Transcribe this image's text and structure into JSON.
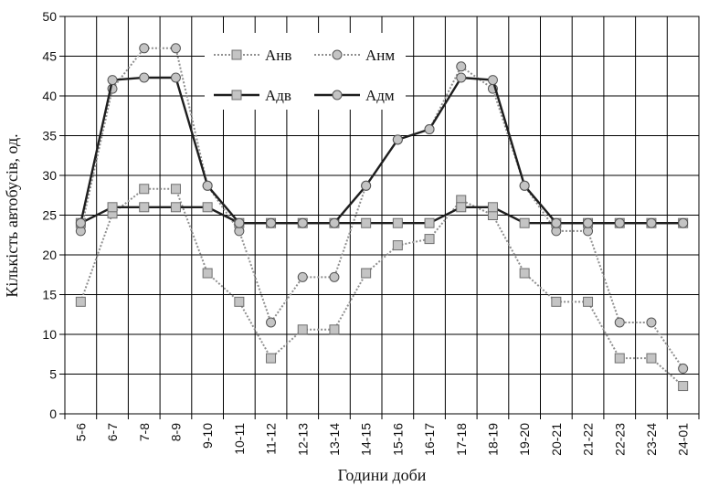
{
  "chart_data": {
    "type": "line",
    "title": "",
    "xlabel": "Години доби",
    "ylabel": "Кількість автобусів, од.",
    "ylim": [
      0,
      50
    ],
    "yticks": [
      0,
      5,
      10,
      15,
      20,
      25,
      30,
      35,
      40,
      45,
      50
    ],
    "grid": true,
    "legend": "top-center",
    "categories": [
      "5-6",
      "6-7",
      "7-8",
      "8-9",
      "9-10",
      "10-11",
      "11-12",
      "12-13",
      "13-14",
      "14-15",
      "15-16",
      "16-17",
      "17-18",
      "18-19",
      "19-20",
      "20-21",
      "21-22",
      "22-23",
      "23-24",
      "24-01"
    ],
    "series": [
      {
        "name": "Анв",
        "marker": "square",
        "style": "dotted",
        "values": [
          14.1,
          25.2,
          28.3,
          28.3,
          17.7,
          14.1,
          7.0,
          10.6,
          10.6,
          17.7,
          21.2,
          22.0,
          26.9,
          25.0,
          17.7,
          14.1,
          14.1,
          7.0,
          7.0,
          3.5
        ]
      },
      {
        "name": "Анм",
        "marker": "circle",
        "style": "dotted",
        "values": [
          23.0,
          40.9,
          46.0,
          46.0,
          28.7,
          23.0,
          11.5,
          17.2,
          17.2,
          28.7,
          34.5,
          35.8,
          43.7,
          40.9,
          28.7,
          23.0,
          23.0,
          11.5,
          11.5,
          5.7
        ]
      },
      {
        "name": "Адв",
        "marker": "square",
        "style": "solid",
        "values": [
          24.0,
          26.0,
          26.0,
          26.0,
          26.0,
          24.0,
          24.0,
          24.0,
          24.0,
          24.0,
          24.0,
          24.0,
          26.0,
          26.0,
          24.0,
          24.0,
          24.0,
          24.0,
          24.0,
          24.0
        ]
      },
      {
        "name": "Адм",
        "marker": "circle",
        "style": "solid",
        "values": [
          24.0,
          42.0,
          42.3,
          42.3,
          28.7,
          24.0,
          24.0,
          24.0,
          24.0,
          28.7,
          34.5,
          35.8,
          42.3,
          42.0,
          28.7,
          24.0,
          24.0,
          24.0,
          24.0,
          24.0
        ]
      }
    ]
  }
}
